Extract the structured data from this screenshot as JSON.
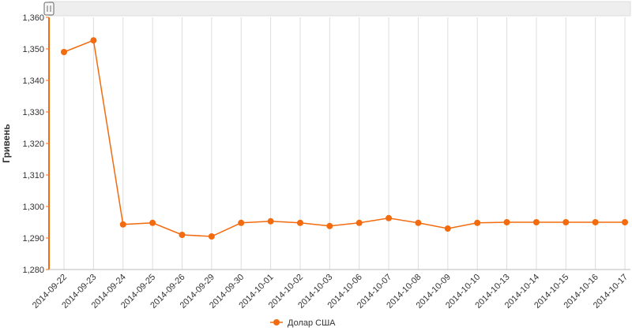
{
  "chart_data": {
    "type": "line",
    "y_label": "Гривень",
    "categories": [
      "2014-09-22",
      "2014-09-23",
      "2014-09-24",
      "2014-09-25",
      "2014-09-26",
      "2014-09-29",
      "2014-09-30",
      "2014-10-01",
      "2014-10-02",
      "2014-10-03",
      "2014-10-06",
      "2014-10-07",
      "2014-10-08",
      "2014-10-09",
      "2014-10-10",
      "2014-10-13",
      "2014-10-14",
      "2014-10-15",
      "2014-10-16",
      "2014-10-17"
    ],
    "series": [
      {
        "name": "Долар США",
        "color": "#f26b0f",
        "values": [
          1349,
          1352.7,
          1294.3,
          1294.8,
          1291,
          1290.5,
          1294.8,
          1295.3,
          1294.8,
          1293.8,
          1294.8,
          1296.3,
          1294.8,
          1293,
          1294.8,
          1295,
          1295,
          1295,
          1295,
          1295
        ]
      }
    ],
    "ylim": [
      1280,
      1360
    ],
    "yticks": [
      {
        "value": 1280,
        "label": "1,280"
      },
      {
        "value": 1290,
        "label": "1,290"
      },
      {
        "value": 1300,
        "label": "1,300"
      },
      {
        "value": 1310,
        "label": "1,310"
      },
      {
        "value": 1320,
        "label": "1,320"
      },
      {
        "value": 1330,
        "label": "1,330"
      },
      {
        "value": 1340,
        "label": "1,340"
      },
      {
        "value": 1350,
        "label": "1,350"
      },
      {
        "value": 1360,
        "label": "1,360"
      }
    ],
    "grid": true
  }
}
